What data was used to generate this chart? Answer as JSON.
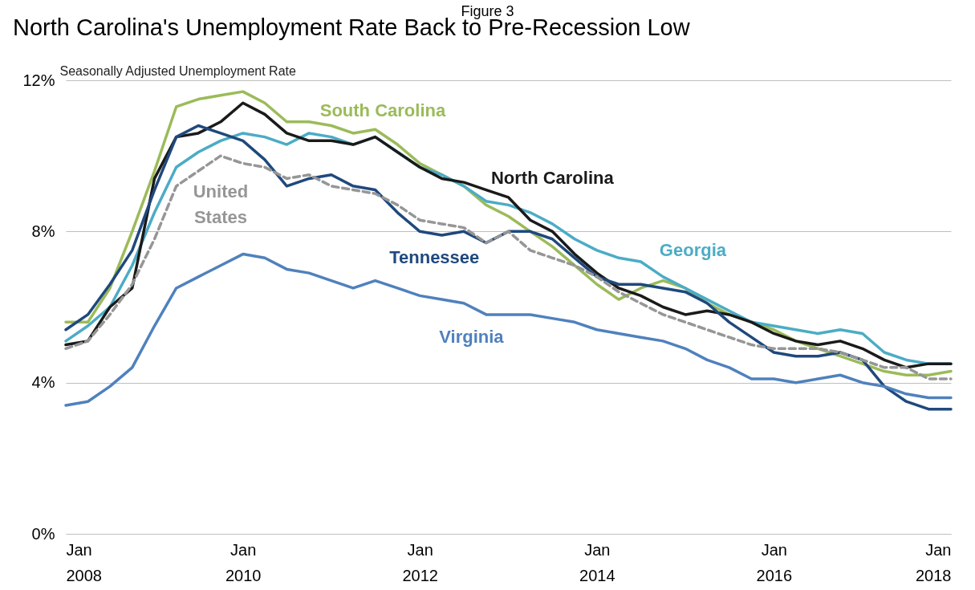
{
  "chart_data": {
    "type": "line",
    "title": "North Carolina's Unemployment Rate Back to Pre-Recession Low",
    "ylabel": "Seasonally Adjusted Unemployment Rate",
    "annotations": [
      "Figure 3"
    ],
    "x": [
      "2008-01",
      "2008-04",
      "2008-07",
      "2008-10",
      "2009-01",
      "2009-04",
      "2009-07",
      "2009-10",
      "2010-01",
      "2010-04",
      "2010-07",
      "2010-10",
      "2011-01",
      "2011-04",
      "2011-07",
      "2011-10",
      "2012-01",
      "2012-04",
      "2012-07",
      "2012-10",
      "2013-01",
      "2013-04",
      "2013-07",
      "2013-10",
      "2014-01",
      "2014-04",
      "2014-07",
      "2014-10",
      "2015-01",
      "2015-04",
      "2015-07",
      "2015-10",
      "2016-01",
      "2016-04",
      "2016-07",
      "2016-10",
      "2017-01",
      "2017-04",
      "2017-07",
      "2017-10",
      "2018-01"
    ],
    "series": [
      {
        "name": "South Carolina",
        "color": "#9bbb59",
        "values": [
          5.6,
          5.6,
          6.5,
          8.0,
          9.6,
          11.3,
          11.5,
          11.6,
          11.7,
          11.4,
          10.9,
          10.9,
          10.8,
          10.6,
          10.7,
          10.3,
          9.8,
          9.5,
          9.2,
          8.7,
          8.4,
          8.0,
          7.6,
          7.1,
          6.6,
          6.2,
          6.5,
          6.7,
          6.5,
          6.1,
          5.8,
          5.6,
          5.4,
          5.1,
          4.9,
          4.7,
          4.5,
          4.3,
          4.2,
          4.2,
          4.3
        ]
      },
      {
        "name": "Georgia",
        "color": "#4bacc6",
        "values": [
          5.1,
          5.5,
          6.0,
          7.1,
          8.5,
          9.7,
          10.1,
          10.4,
          10.6,
          10.5,
          10.3,
          10.6,
          10.5,
          10.3,
          10.5,
          10.1,
          9.7,
          9.5,
          9.2,
          8.8,
          8.7,
          8.5,
          8.2,
          7.8,
          7.5,
          7.3,
          7.2,
          6.8,
          6.5,
          6.2,
          5.9,
          5.6,
          5.5,
          5.4,
          5.3,
          5.4,
          5.3,
          4.8,
          4.6,
          4.5,
          4.5
        ]
      },
      {
        "name": "North Carolina",
        "color": "#1a1a1a",
        "values": [
          5.0,
          5.1,
          6.0,
          6.5,
          9.4,
          10.5,
          10.6,
          10.9,
          11.4,
          11.1,
          10.6,
          10.4,
          10.4,
          10.3,
          10.5,
          10.1,
          9.7,
          9.4,
          9.3,
          9.1,
          8.9,
          8.3,
          8.0,
          7.4,
          6.9,
          6.5,
          6.3,
          6.0,
          5.8,
          5.9,
          5.8,
          5.6,
          5.3,
          5.1,
          5.0,
          5.1,
          4.9,
          4.6,
          4.4,
          4.5,
          4.5
        ]
      },
      {
        "name": "United States",
        "color": "#969696",
        "line_style": "dashed",
        "values": [
          4.9,
          5.1,
          5.8,
          6.6,
          7.8,
          9.2,
          9.6,
          10.0,
          9.8,
          9.7,
          9.4,
          9.5,
          9.2,
          9.1,
          9.0,
          8.7,
          8.3,
          8.2,
          8.1,
          7.7,
          8.0,
          7.5,
          7.3,
          7.1,
          6.8,
          6.4,
          6.1,
          5.8,
          5.6,
          5.4,
          5.2,
          5.0,
          4.9,
          4.9,
          4.9,
          4.8,
          4.6,
          4.4,
          4.4,
          4.1,
          4.1
        ]
      },
      {
        "name": "Tennessee",
        "color": "#1f497d",
        "values": [
          5.4,
          5.8,
          6.6,
          7.5,
          9.1,
          10.5,
          10.8,
          10.6,
          10.4,
          9.9,
          9.2,
          9.4,
          9.5,
          9.2,
          9.1,
          8.5,
          8.0,
          7.9,
          8.0,
          7.7,
          8.0,
          8.0,
          7.8,
          7.3,
          6.8,
          6.6,
          6.6,
          6.5,
          6.4,
          6.1,
          5.6,
          5.2,
          4.8,
          4.7,
          4.7,
          4.8,
          4.6,
          3.9,
          3.5,
          3.3,
          3.3
        ]
      },
      {
        "name": "Virginia",
        "color": "#4f81bd",
        "values": [
          3.4,
          3.5,
          3.9,
          4.4,
          5.5,
          6.5,
          6.8,
          7.1,
          7.4,
          7.3,
          7.0,
          6.9,
          6.7,
          6.5,
          6.7,
          6.5,
          6.3,
          6.2,
          6.1,
          5.8,
          5.8,
          5.8,
          5.7,
          5.6,
          5.4,
          5.3,
          5.2,
          5.1,
          4.9,
          4.6,
          4.4,
          4.1,
          4.1,
          4.0,
          4.1,
          4.2,
          4.0,
          3.9,
          3.7,
          3.6,
          3.6
        ]
      }
    ],
    "xlim": [
      "2008-01",
      "2018-01"
    ],
    "xticks": [
      {
        "value": "2008-01",
        "label": "Jan\n2008"
      },
      {
        "value": "2010-01",
        "label": "Jan\n2010"
      },
      {
        "value": "2012-01",
        "label": "Jan\n2012"
      },
      {
        "value": "2014-01",
        "label": "Jan\n2014"
      },
      {
        "value": "2016-01",
        "label": "Jan\n2016"
      },
      {
        "value": "2018-01",
        "label": "Jan\n2018"
      }
    ],
    "ylim": [
      0,
      12
    ],
    "yticks": [
      {
        "value": 0,
        "label": "0%"
      },
      {
        "value": 4,
        "label": "4%"
      },
      {
        "value": 8,
        "label": "8%"
      },
      {
        "value": 12,
        "label": "12%"
      }
    ],
    "grid": "y",
    "legend": false,
    "marker": "none"
  }
}
